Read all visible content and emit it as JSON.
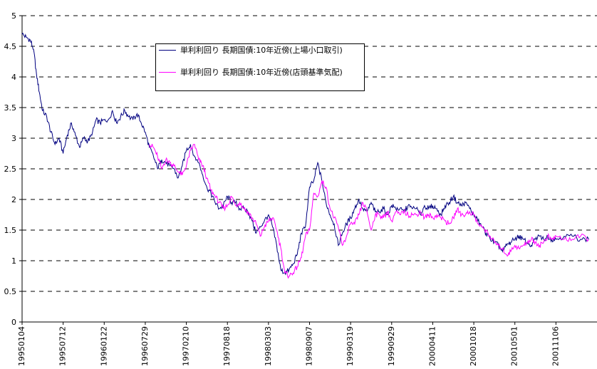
{
  "chart_data": {
    "type": "line",
    "title": "",
    "xlabel": "",
    "ylabel": "",
    "ylim": [
      0,
      5
    ],
    "yticks": [
      "0",
      "0.5",
      "1",
      "1.5",
      "2",
      "2.5",
      "3",
      "3.5",
      "4",
      "4.5",
      "5"
    ],
    "xtick_labels": [
      "19950104",
      "19950712",
      "19960122",
      "19960729",
      "19970210",
      "19970818",
      "19980303",
      "19980907",
      "19990319",
      "19990929",
      "20000411",
      "20001018",
      "20010501",
      "20011106"
    ],
    "grid": "horizontal dashed",
    "legend_position": "top-center",
    "colors": {
      "series1": "#000080",
      "series2": "#ff00ff"
    },
    "series": [
      {
        "name": "単利利回り 長期国債:10年近傍(上場小口取引)",
        "color": "#000080",
        "x": [
          0,
          0.1,
          0.2,
          0.28,
          0.35,
          0.42,
          0.5,
          0.6,
          0.7,
          0.8,
          0.9,
          1.0,
          1.1,
          1.2,
          1.3,
          1.4,
          1.5,
          1.6,
          1.7,
          1.8,
          1.9,
          2.0,
          2.1,
          2.2,
          2.3,
          2.4,
          2.5,
          2.6,
          2.7,
          2.8,
          2.9,
          3.0,
          3.1,
          3.2,
          3.3,
          3.4,
          3.5,
          3.6,
          3.7,
          3.8,
          3.9,
          4.0,
          4.1,
          4.2,
          4.3,
          4.4,
          4.5,
          4.6,
          4.7,
          4.8,
          4.9,
          5.0,
          5.1,
          5.2,
          5.3,
          5.4,
          5.5,
          5.6,
          5.7,
          5.8,
          5.9,
          6.0,
          6.1,
          6.2,
          6.3,
          6.4,
          6.5,
          6.6,
          6.7,
          6.8,
          6.9,
          7.0,
          7.1,
          7.2,
          7.3,
          7.4,
          7.5,
          7.6,
          7.7,
          7.8,
          7.9,
          8.0,
          8.1,
          8.2,
          8.3,
          8.4,
          8.5,
          8.6,
          8.7,
          8.8,
          8.9,
          9.0,
          9.1,
          9.2,
          9.3,
          9.4,
          9.5,
          9.6,
          9.7,
          9.8,
          9.9,
          10.0,
          10.1,
          10.2,
          10.3,
          10.4,
          10.5,
          10.6,
          10.7,
          10.8,
          10.9,
          11.0,
          11.1,
          11.2,
          11.3,
          11.4,
          11.5,
          11.6,
          11.7,
          11.8,
          11.9,
          12.0,
          12.1,
          12.2,
          12.3,
          12.4,
          12.5,
          12.6,
          12.7,
          12.8,
          12.9,
          13.0,
          13.2,
          13.4,
          13.6,
          13.8
        ],
        "values": [
          4.7,
          4.65,
          4.6,
          4.45,
          4.05,
          3.75,
          3.45,
          3.35,
          3.1,
          2.9,
          3.0,
          2.75,
          3.05,
          3.25,
          3.05,
          2.85,
          3.0,
          2.95,
          3.05,
          3.3,
          3.25,
          3.3,
          3.3,
          3.45,
          3.25,
          3.35,
          3.45,
          3.35,
          3.3,
          3.4,
          3.25,
          3.1,
          2.85,
          2.7,
          2.5,
          2.65,
          2.6,
          2.55,
          2.5,
          2.35,
          2.55,
          2.8,
          2.9,
          2.7,
          2.6,
          2.4,
          2.2,
          2.1,
          1.95,
          1.85,
          1.9,
          2.05,
          1.95,
          1.95,
          1.85,
          1.85,
          1.8,
          1.65,
          1.45,
          1.55,
          1.65,
          1.75,
          1.55,
          1.25,
          0.85,
          0.8,
          0.85,
          0.95,
          1.1,
          1.45,
          1.55,
          2.2,
          2.3,
          2.6,
          2.3,
          1.95,
          1.75,
          1.6,
          1.25,
          1.45,
          1.6,
          1.7,
          1.85,
          2.0,
          1.85,
          1.8,
          1.95,
          1.8,
          1.8,
          1.85,
          1.75,
          1.9,
          1.85,
          1.85,
          1.8,
          1.9,
          1.85,
          1.85,
          1.75,
          1.9,
          1.85,
          1.9,
          1.85,
          1.75,
          1.9,
          1.95,
          2.05,
          1.95,
          1.9,
          1.95,
          1.85,
          1.75,
          1.65,
          1.55,
          1.45,
          1.35,
          1.3,
          1.25,
          1.15,
          1.25,
          1.3,
          1.35,
          1.4,
          1.35,
          1.3,
          1.25,
          1.35,
          1.4,
          1.35,
          1.4,
          1.35,
          1.35,
          1.4,
          1.4,
          1.35,
          1.35
        ]
      },
      {
        "name": "単利利回り 長期国債:10年近傍(店頭基準気配)",
        "color": "#ff00ff",
        "x": [
          3.1,
          3.2,
          3.3,
          3.4,
          3.5,
          3.6,
          3.7,
          3.8,
          3.9,
          4.0,
          4.1,
          4.2,
          4.3,
          4.4,
          4.5,
          4.6,
          4.7,
          4.8,
          4.9,
          5.0,
          5.1,
          5.2,
          5.3,
          5.4,
          5.5,
          5.6,
          5.7,
          5.8,
          5.9,
          6.0,
          6.1,
          6.2,
          6.3,
          6.4,
          6.5,
          6.6,
          6.7,
          6.8,
          6.9,
          7.0,
          7.1,
          7.2,
          7.3,
          7.4,
          7.5,
          7.6,
          7.7,
          7.8,
          7.9,
          8.0,
          8.1,
          8.2,
          8.3,
          8.4,
          8.5,
          8.6,
          8.7,
          8.8,
          8.9,
          9.0,
          9.1,
          9.2,
          9.3,
          9.4,
          9.5,
          9.6,
          9.7,
          9.8,
          9.9,
          10.0,
          10.1,
          10.2,
          10.3,
          10.4,
          10.5,
          10.6,
          10.7,
          10.8,
          10.9,
          11.0,
          11.1,
          11.2,
          11.3,
          11.4,
          11.5,
          11.6,
          11.7,
          11.8,
          11.9,
          12.0,
          12.1,
          12.2,
          12.3,
          12.4,
          12.5,
          12.6,
          12.7,
          12.8,
          12.9,
          13.0,
          13.2,
          13.4,
          13.6,
          13.8
        ],
        "values": [
          2.9,
          2.85,
          2.7,
          2.5,
          2.65,
          2.6,
          2.55,
          2.45,
          2.4,
          2.55,
          2.8,
          2.9,
          2.65,
          2.55,
          2.35,
          2.15,
          2.05,
          1.95,
          1.85,
          1.9,
          2.05,
          1.9,
          1.95,
          1.85,
          1.8,
          1.7,
          1.6,
          1.4,
          1.55,
          1.65,
          1.7,
          1.5,
          1.2,
          0.8,
          0.75,
          0.8,
          0.9,
          1.05,
          1.4,
          1.5,
          2.1,
          2.05,
          2.3,
          2.2,
          1.85,
          1.7,
          1.55,
          1.25,
          1.4,
          1.6,
          1.6,
          1.75,
          1.95,
          1.8,
          1.5,
          1.75,
          1.75,
          1.7,
          1.8,
          1.65,
          1.8,
          1.75,
          1.8,
          1.75,
          1.75,
          1.75,
          1.8,
          1.7,
          1.75,
          1.7,
          1.75,
          1.7,
          1.65,
          1.6,
          1.7,
          1.85,
          1.75,
          1.75,
          1.8,
          1.75,
          1.6,
          1.55,
          1.5,
          1.4,
          1.3,
          1.25,
          1.2,
          1.1,
          1.15,
          1.25,
          1.2,
          1.25,
          1.3,
          1.35,
          1.3,
          1.25,
          1.3,
          1.4,
          1.35,
          1.4,
          1.35,
          1.35,
          1.4,
          1.35
        ]
      }
    ]
  }
}
